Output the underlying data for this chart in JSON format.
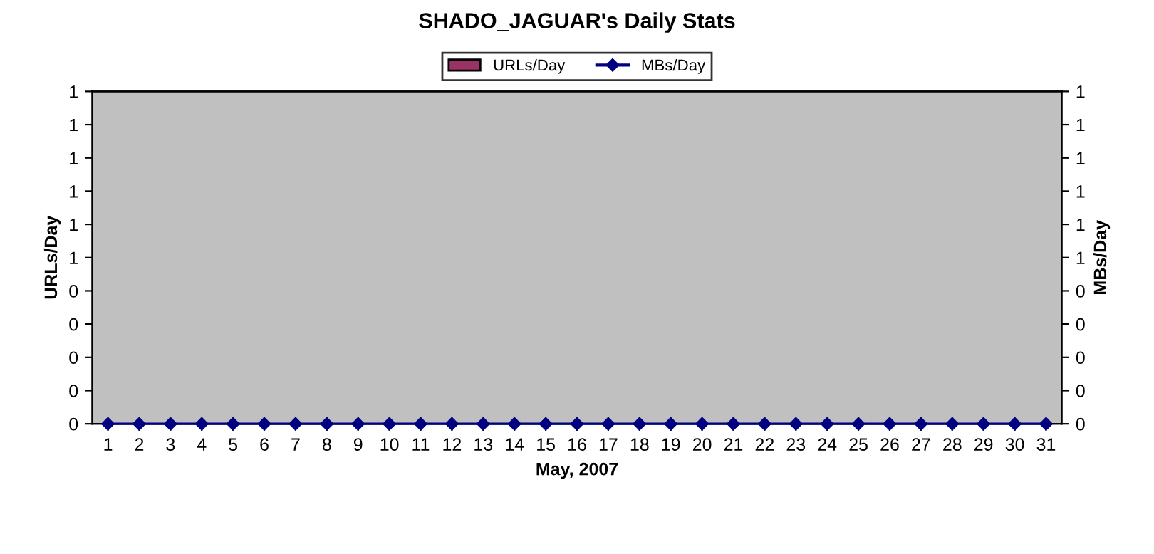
{
  "chart_data": {
    "type": "bar",
    "title": "SHADO_JAGUAR's Daily Stats",
    "xlabel": "May, 2007",
    "ylabel": "URLs/Day",
    "y2label": "MBs/Day",
    "categories": [
      "1",
      "2",
      "3",
      "4",
      "5",
      "6",
      "7",
      "8",
      "9",
      "10",
      "11",
      "12",
      "13",
      "14",
      "15",
      "16",
      "17",
      "18",
      "19",
      "20",
      "21",
      "22",
      "23",
      "24",
      "25",
      "26",
      "27",
      "28",
      "29",
      "30",
      "31"
    ],
    "series": [
      {
        "name": "URLs/Day",
        "color": "#993366",
        "values": [
          0,
          0,
          0,
          0,
          0,
          0,
          0,
          0,
          0,
          0,
          0,
          0,
          0,
          0,
          0,
          0,
          0,
          0,
          0,
          0,
          0,
          0,
          0,
          0,
          0,
          0,
          0,
          0,
          0,
          0,
          0
        ]
      },
      {
        "name": "MBs/Day",
        "type": "line",
        "axis": "y2",
        "color": "#000080",
        "marker": "diamond",
        "line_style": "solid",
        "values": [
          0,
          0,
          0,
          0,
          0,
          0,
          0,
          0,
          0,
          0,
          0,
          0,
          0,
          0,
          0,
          0,
          0,
          0,
          0,
          0,
          0,
          0,
          0,
          0,
          0,
          0,
          0,
          0,
          0,
          0,
          0
        ]
      }
    ],
    "ylim": [
      0,
      1
    ],
    "yticks": [
      0,
      {
        "value": 0.1,
        "label": "0"
      },
      {
        "value": 0.2,
        "label": "0"
      },
      {
        "value": 0.3,
        "label": "0"
      },
      {
        "value": 0.4,
        "label": "0"
      },
      {
        "value": 0.5,
        "label": "1"
      },
      {
        "value": 0.6,
        "label": "1"
      },
      {
        "value": 0.7,
        "label": "1"
      },
      {
        "value": 0.8,
        "label": "1"
      },
      {
        "value": 0.9,
        "label": "1"
      },
      1
    ],
    "y2lim": [
      0,
      1
    ],
    "y2ticks": [
      0,
      {
        "value": 0.1,
        "label": "0"
      },
      {
        "value": 0.2,
        "label": "0"
      },
      {
        "value": 0.3,
        "label": "0"
      },
      {
        "value": 0.4,
        "label": "0"
      },
      {
        "value": 0.5,
        "label": "1"
      },
      {
        "value": 0.6,
        "label": "1"
      },
      {
        "value": 0.7,
        "label": "1"
      },
      {
        "value": 0.8,
        "label": "1"
      },
      {
        "value": 0.9,
        "label": "1"
      },
      1
    ],
    "grid": false,
    "legend": "top"
  }
}
